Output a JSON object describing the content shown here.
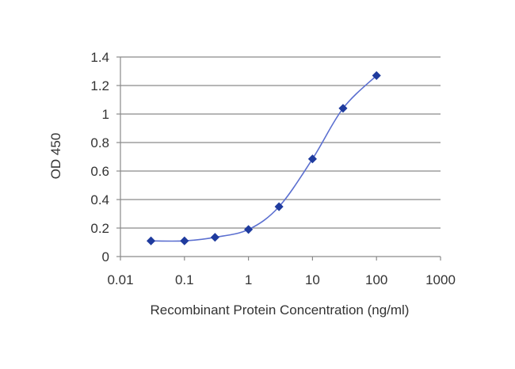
{
  "chart_data": {
    "type": "line",
    "title": "",
    "xlabel": "Recombinant Protein Concentration (ng/ml)",
    "ylabel": "OD 450",
    "x_scale": "log",
    "xlim": [
      0.01,
      1000
    ],
    "ylim": [
      0,
      1.4
    ],
    "x_ticks": [
      "0.01",
      "0.1",
      "1",
      "10",
      "100",
      "1000"
    ],
    "y_ticks": [
      "0",
      "0.2",
      "0.4",
      "0.6",
      "0.8",
      "1",
      "1.2",
      "1.4"
    ],
    "grid": "horizontal",
    "legend": "none",
    "line_color": "#5b6fd0",
    "marker_color": "#1f3b9e",
    "series": [
      {
        "x": [
          0.03,
          0.1,
          0.3,
          1,
          3,
          10,
          30,
          100
        ],
        "y": [
          0.11,
          0.11,
          0.135,
          0.19,
          0.35,
          0.685,
          1.04,
          1.27
        ]
      }
    ]
  }
}
